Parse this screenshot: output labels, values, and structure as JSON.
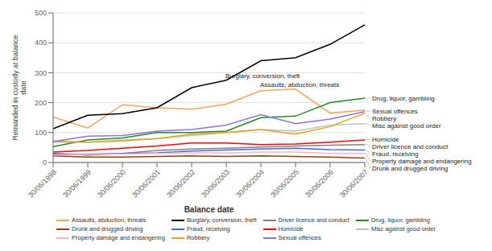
{
  "chart_data": {
    "type": "line",
    "xlabel": "Balance date",
    "ylabel": "Remanded in custody at balance\ndate",
    "categories": [
      "30/06/1998",
      "30/06/1999",
      "30/06/2000",
      "30/06/2001",
      "30/06/2002",
      "30/06/2003",
      "30/06/2004",
      "30/06/2005",
      "30/06/2006",
      "30/06/2007"
    ],
    "series": [
      {
        "name": "Assaults, abduction, threats",
        "color": "#f4a460",
        "values": [
          152,
          115,
          193,
          183,
          178,
          195,
          240,
          245,
          165,
          175
        ]
      },
      {
        "name": "Burglary, conversion, theft",
        "color": "#000000",
        "values": [
          113,
          158,
          163,
          183,
          250,
          275,
          340,
          350,
          395,
          460
        ]
      },
      {
        "name": "Driver licence and conduct",
        "color": "#808080",
        "values": [
          30,
          25,
          30,
          40,
          45,
          48,
          52,
          55,
          58,
          60
        ]
      },
      {
        "name": "Drug, liquor, gambling",
        "color": "#228b22",
        "values": [
          53,
          75,
          82,
          100,
          100,
          105,
          150,
          155,
          200,
          215
        ]
      },
      {
        "name": "Drunk and drugged driving",
        "color": "#8b4513",
        "values": [
          22,
          18,
          18,
          20,
          22,
          20,
          22,
          20,
          18,
          15
        ]
      },
      {
        "name": "Fraud, receiving",
        "color": "#4169e1",
        "values": [
          28,
          28,
          30,
          32,
          38,
          42,
          45,
          48,
          43,
          42
        ]
      },
      {
        "name": "Homicide",
        "color": "#ff0000",
        "values": [
          35,
          40,
          48,
          55,
          65,
          65,
          60,
          62,
          68,
          75
        ]
      },
      {
        "name": "Misc against good order",
        "color": "#c0c0c0",
        "values": [
          68,
          68,
          75,
          80,
          90,
          100,
          110,
          105,
          125,
          130
        ]
      },
      {
        "name": "Property damage and endangering",
        "color": "#ffb6c1",
        "values": [
          25,
          28,
          28,
          30,
          32,
          32,
          35,
          35,
          30,
          30
        ]
      },
      {
        "name": "Robbery",
        "color": "#daa520",
        "values": [
          72,
          68,
          72,
          80,
          95,
          100,
          110,
          95,
          120,
          165
        ]
      },
      {
        "name": "Sexual offences",
        "color": "#9370db",
        "values": [
          70,
          88,
          90,
          105,
          110,
          125,
          160,
          130,
          145,
          170
        ]
      }
    ],
    "ylim": [
      0,
      500
    ],
    "yticks": [
      0,
      100,
      200,
      300,
      400,
      500
    ],
    "grid": true,
    "legend": "bottom",
    "annotations": [
      {
        "text": "Burglary, conversion, theft",
        "x": "30/06/2003",
        "y": 275
      },
      {
        "text": "Assaults, abduction, threats",
        "x": "30/06/2004",
        "y": 245
      },
      {
        "text": "Drug, liquor, gambling",
        "y": 215
      },
      {
        "text": "Sexual offences",
        "y": 172
      },
      {
        "text": "Robbery",
        "y": 162
      },
      {
        "text": "Misc against good order",
        "y": 132
      },
      {
        "text": "Homicide",
        "y": 77
      },
      {
        "text": "Driver licence and conduct",
        "y": 63
      },
      {
        "text": "Fraud, receiving",
        "y": 43
      },
      {
        "text": "Property damage and endangering",
        "y": 31
      },
      {
        "text": "Drunk and drugged driving",
        "y": 16
      }
    ]
  }
}
